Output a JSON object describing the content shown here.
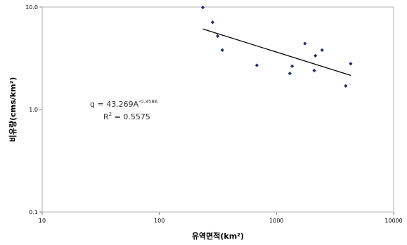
{
  "chart_data": {
    "type": "scatter",
    "xlabel": "유역면적(km²)",
    "ylabel": "비유량(cms/km²)",
    "xscale": "log",
    "yscale": "log",
    "xlim": [
      10,
      10000
    ],
    "ylim": [
      0.1,
      10
    ],
    "grid": false,
    "x_ticks": [
      "10",
      "100",
      "1000",
      "10000"
    ],
    "y_ticks": [
      "0.1",
      "1.0",
      "10.0"
    ],
    "points": [
      {
        "x": 235,
        "y": 9.9
      },
      {
        "x": 285,
        "y": 7.1
      },
      {
        "x": 315,
        "y": 5.2
      },
      {
        "x": 345,
        "y": 3.8
      },
      {
        "x": 680,
        "y": 2.7
      },
      {
        "x": 1300,
        "y": 2.25
      },
      {
        "x": 1360,
        "y": 2.65
      },
      {
        "x": 1750,
        "y": 4.4
      },
      {
        "x": 2100,
        "y": 2.4
      },
      {
        "x": 2150,
        "y": 3.35
      },
      {
        "x": 2450,
        "y": 3.8
      },
      {
        "x": 3900,
        "y": 1.7
      },
      {
        "x": 4300,
        "y": 2.8
      }
    ],
    "trendline": {
      "type": "power",
      "a": 43.269,
      "b": -0.3586,
      "x_from": 235,
      "x_to": 4300
    },
    "equation": {
      "base": "q = 43.269A",
      "exp": "-0.3586"
    },
    "r2": {
      "base": "R",
      "exp": "2",
      "value": " = 0.5575"
    },
    "colors": {
      "marker": "#1f2a6b",
      "line": "#000000"
    }
  }
}
